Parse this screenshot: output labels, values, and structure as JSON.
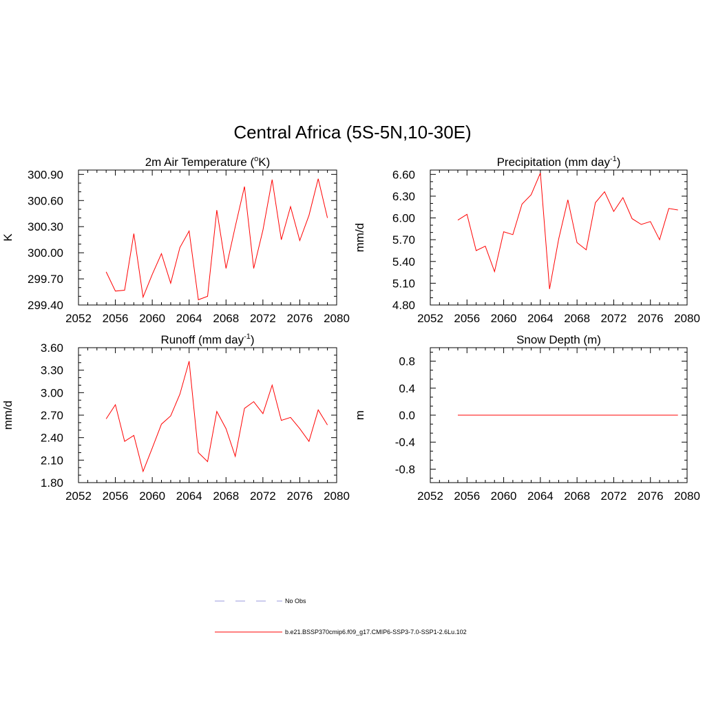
{
  "title": "Central Africa (5S-5N,10-30E)",
  "colors": {
    "model_line": "#ff0000",
    "obs_line": "#9999dd",
    "axis": "#000000"
  },
  "chart_data": [
    {
      "type": "line",
      "panel": "top-left",
      "title_main": "2m Air Temperature (",
      "title_sup": "o",
      "title_end": "K)",
      "ylabel": "K",
      "xlim": [
        2052,
        2080
      ],
      "xticks": [
        "2052",
        "2056",
        "2060",
        "2064",
        "2068",
        "2072",
        "2076",
        "2080"
      ],
      "ylim": [
        299.4,
        300.95
      ],
      "yticks": [
        "299.40",
        "299.70",
        "300.00",
        "300.30",
        "300.60",
        "300.90"
      ],
      "x": [
        2055,
        2056,
        2057,
        2058,
        2059,
        2060,
        2061,
        2062,
        2063,
        2064,
        2065,
        2066,
        2067,
        2068,
        2069,
        2070,
        2071,
        2072,
        2073,
        2074,
        2075,
        2076,
        2077,
        2078,
        2079
      ],
      "series": [
        {
          "name": "b.e21.BSSP370cmip6.f09_g17.CMIP6-SSP3-7.0-SSP1-2.6Lu.102",
          "values": [
            299.78,
            299.56,
            299.57,
            300.22,
            299.49,
            299.75,
            299.99,
            299.65,
            300.06,
            300.25,
            299.46,
            299.5,
            300.49,
            299.82,
            300.3,
            300.76,
            299.82,
            300.26,
            300.84,
            300.15,
            300.53,
            300.14,
            300.43,
            300.85,
            300.4
          ]
        }
      ]
    },
    {
      "type": "line",
      "panel": "top-right",
      "title_main": "Precipitation (mm day",
      "title_sup": "-1",
      "title_end": ")",
      "ylabel": "mm/d",
      "xlim": [
        2052,
        2080
      ],
      "xticks": [
        "2052",
        "2056",
        "2060",
        "2064",
        "2068",
        "2072",
        "2076",
        "2080"
      ],
      "ylim": [
        4.8,
        6.66
      ],
      "yticks": [
        "4.80",
        "5.10",
        "5.40",
        "5.70",
        "6.00",
        "6.30",
        "6.60"
      ],
      "x": [
        2055,
        2056,
        2057,
        2058,
        2059,
        2060,
        2061,
        2062,
        2063,
        2064,
        2065,
        2066,
        2067,
        2068,
        2069,
        2070,
        2071,
        2072,
        2073,
        2074,
        2075,
        2076,
        2077,
        2078,
        2079
      ],
      "series": [
        {
          "name": "b.e21.BSSP370cmip6.f09_g17.CMIP6-SSP3-7.0-SSP1-2.6Lu.102",
          "values": [
            5.97,
            6.05,
            5.55,
            5.61,
            5.26,
            5.81,
            5.77,
            6.19,
            6.32,
            6.62,
            5.02,
            5.71,
            6.25,
            5.66,
            5.56,
            6.21,
            6.36,
            6.09,
            6.28,
            5.99,
            5.91,
            5.95,
            5.7,
            6.13,
            6.11
          ]
        }
      ]
    },
    {
      "type": "line",
      "panel": "bottom-left",
      "title_main": "Runoff (mm day",
      "title_sup": "-1",
      "title_end": ")",
      "ylabel": "mm/d",
      "xlim": [
        2052,
        2080
      ],
      "xticks": [
        "2052",
        "2056",
        "2060",
        "2064",
        "2068",
        "2072",
        "2076",
        "2080"
      ],
      "ylim": [
        1.8,
        3.6
      ],
      "yticks": [
        "1.80",
        "2.10",
        "2.40",
        "2.70",
        "3.00",
        "3.30",
        "3.60"
      ],
      "x": [
        2055,
        2056,
        2057,
        2058,
        2059,
        2060,
        2061,
        2062,
        2063,
        2064,
        2065,
        2066,
        2067,
        2068,
        2069,
        2070,
        2071,
        2072,
        2073,
        2074,
        2075,
        2076,
        2077,
        2078,
        2079
      ],
      "series": [
        {
          "name": "b.e21.BSSP370cmip6.f09_g17.CMIP6-SSP3-7.0-SSP1-2.6Lu.102",
          "values": [
            2.65,
            2.84,
            2.35,
            2.43,
            1.95,
            2.26,
            2.58,
            2.69,
            2.98,
            3.42,
            2.2,
            2.08,
            2.75,
            2.52,
            2.15,
            2.79,
            2.88,
            2.72,
            3.1,
            2.63,
            2.67,
            2.52,
            2.35,
            2.77,
            2.57
          ]
        }
      ]
    },
    {
      "type": "line",
      "panel": "bottom-right",
      "title_main": "Snow Depth (m)",
      "title_sup": "",
      "title_end": "",
      "ylabel": "m",
      "xlim": [
        2052,
        2080
      ],
      "xticks": [
        "2052",
        "2056",
        "2060",
        "2064",
        "2068",
        "2072",
        "2076",
        "2080"
      ],
      "ylim": [
        -1.0,
        1.0
      ],
      "yticks": [
        "-0.8",
        "-0.4",
        "0.0",
        "0.4",
        "0.8"
      ],
      "ytick_values": [
        -0.8,
        -0.4,
        0.0,
        0.4,
        0.8
      ],
      "x": [
        2055,
        2056,
        2057,
        2058,
        2059,
        2060,
        2061,
        2062,
        2063,
        2064,
        2065,
        2066,
        2067,
        2068,
        2069,
        2070,
        2071,
        2072,
        2073,
        2074,
        2075,
        2076,
        2077,
        2078,
        2079
      ],
      "series": [
        {
          "name": "b.e21.BSSP370cmip6.f09_g17.CMIP6-SSP3-7.0-SSP1-2.6Lu.102",
          "values": [
            0,
            0,
            0,
            0,
            0,
            0,
            0,
            0,
            0,
            0,
            0,
            0,
            0,
            0,
            0,
            0,
            0,
            0,
            0,
            0,
            0,
            0,
            0,
            0,
            0
          ]
        }
      ]
    }
  ],
  "legend": [
    {
      "label": "No Obs",
      "style": "dashed",
      "color": "#9999dd"
    },
    {
      "label": "b.e21.BSSP370cmip6.f09_g17.CMIP6-SSP3-7.0-SSP1-2.6Lu.102",
      "style": "solid",
      "color": "#ff0000"
    }
  ]
}
